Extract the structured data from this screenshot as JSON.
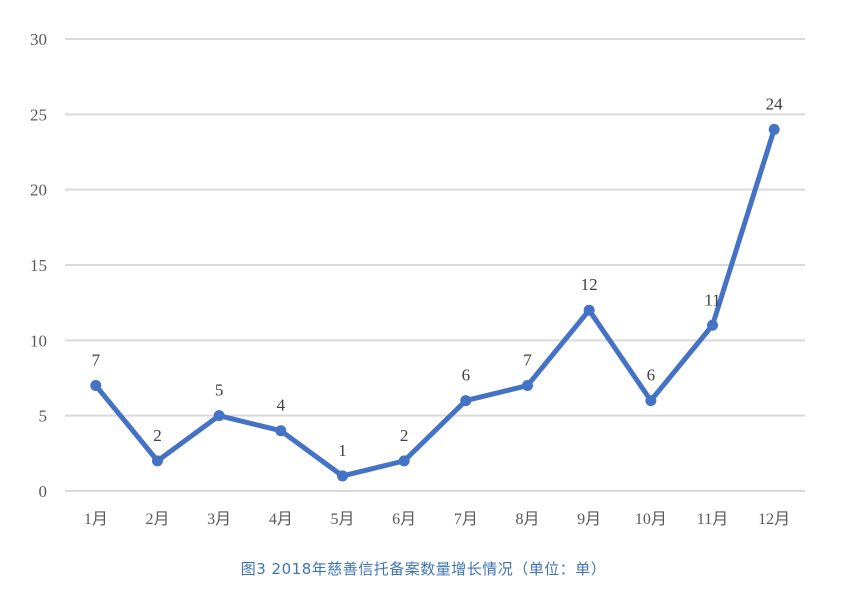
{
  "chart_data": {
    "type": "line",
    "title": "",
    "caption": "图3  2018年慈善信托备案数量增长情况（单位：单）",
    "xlabel": "",
    "ylabel": "",
    "categories": [
      "1月",
      "2月",
      "3月",
      "4月",
      "5月",
      "6月",
      "7月",
      "8月",
      "9月",
      "10月",
      "11月",
      "12月"
    ],
    "series": [
      {
        "name": "慈善信托备案数量",
        "values": [
          7,
          2,
          5,
          4,
          1,
          2,
          6,
          7,
          12,
          6,
          11,
          24
        ],
        "color": "#4472c4"
      }
    ],
    "data_labels": [
      "7",
      "2",
      "5",
      "4",
      "1",
      "2",
      "6",
      "7",
      "12",
      "6",
      "11",
      "24"
    ],
    "yticks": [
      "0",
      "5",
      "10",
      "15",
      "20",
      "25",
      "30"
    ],
    "ylim": [
      0,
      30
    ],
    "grid": true,
    "legend": "none"
  },
  "colors": {
    "line": "#4472c4",
    "grid": "#d9d9d9",
    "tick_text": "#595959",
    "caption": "#3f74b4"
  }
}
